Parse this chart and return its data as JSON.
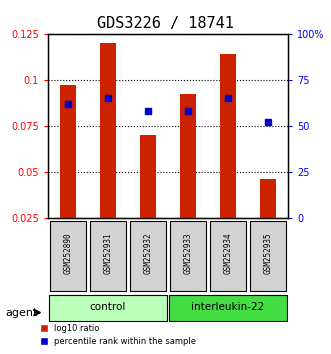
{
  "title": "GDS3226 / 18741",
  "samples": [
    "GSM252890",
    "GSM252931",
    "GSM252932",
    "GSM252933",
    "GSM252934",
    "GSM252935"
  ],
  "log10_ratio": [
    0.097,
    0.12,
    0.07,
    0.092,
    0.114,
    0.046
  ],
  "percentile_rank": [
    0.62,
    0.65,
    0.58,
    0.58,
    0.65,
    0.52
  ],
  "groups": [
    {
      "label": "control",
      "samples": [
        0,
        1,
        2
      ],
      "color": "#bbffbb"
    },
    {
      "label": "interleukin-22",
      "samples": [
        3,
        4,
        5
      ],
      "color": "#44dd44"
    }
  ],
  "ylim_left": [
    0.025,
    0.125
  ],
  "yticks_left": [
    0.025,
    0.05,
    0.075,
    0.1,
    0.125
  ],
  "ytick_labels_left": [
    "0.025",
    "0.05",
    "0.075",
    "0.1",
    "0.125"
  ],
  "ytick_labels_right": [
    "0",
    "25",
    "50",
    "75",
    "100%"
  ],
  "bar_color": "#cc2200",
  "dot_color": "#0000cc",
  "bar_width": 0.4,
  "bg_color": "#ffffff",
  "plot_bg": "#ffffff",
  "title_fontsize": 11,
  "tick_fontsize": 7,
  "legend_red": "log10 ratio",
  "legend_blue": "percentile rank within the sample",
  "agent_label": "agent"
}
